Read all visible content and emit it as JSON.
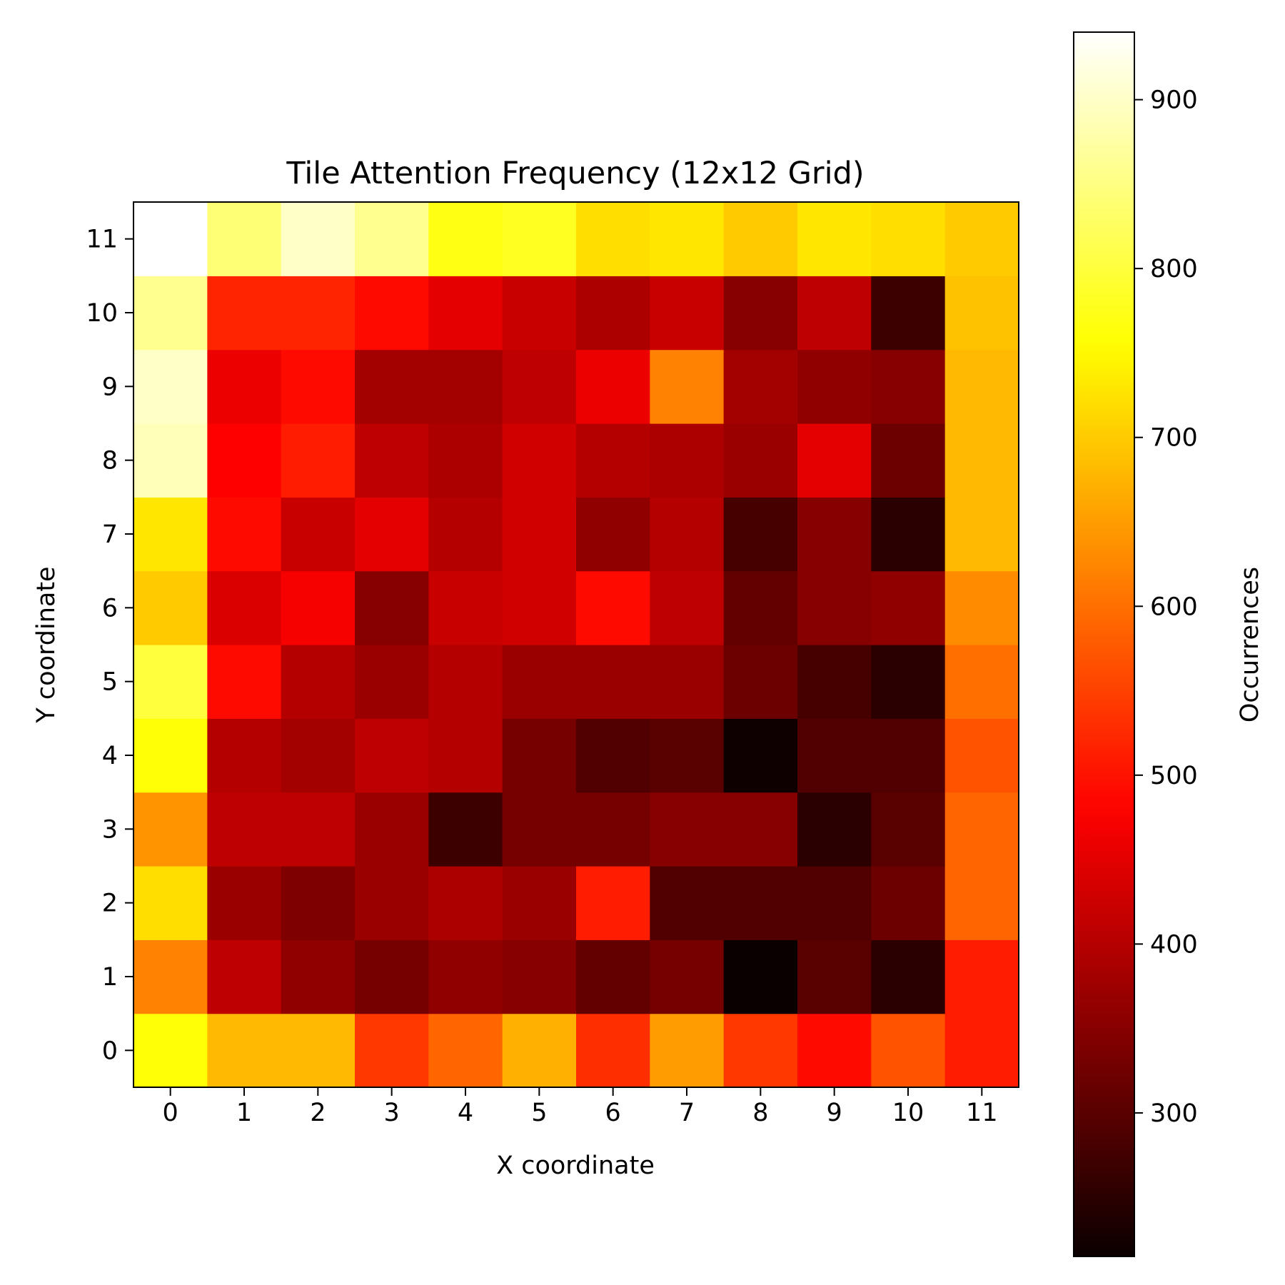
{
  "chart_data": {
    "type": "heatmap",
    "title": "Tile Attention Frequency (12x12 Grid)",
    "xlabel": "X coordinate",
    "ylabel": "Y coordinate",
    "x": [
      0,
      1,
      2,
      3,
      4,
      5,
      6,
      7,
      8,
      9,
      10,
      11
    ],
    "y": [
      0,
      1,
      2,
      3,
      4,
      5,
      6,
      7,
      8,
      9,
      10,
      11
    ],
    "colormap": "hot",
    "vmin": 215,
    "vmax": 940,
    "colorbar": {
      "label": "Occurrences",
      "ticks": [
        300,
        400,
        500,
        600,
        700,
        800,
        900
      ]
    },
    "values": [
      [
        760,
        680,
        680,
        540,
        590,
        670,
        530,
        650,
        540,
        490,
        570,
        510
      ],
      [
        620,
        410,
        360,
        330,
        360,
        350,
        310,
        330,
        215,
        300,
        250,
        510
      ],
      [
        720,
        370,
        340,
        370,
        390,
        370,
        510,
        290,
        290,
        290,
        320,
        590
      ],
      [
        640,
        410,
        410,
        370,
        270,
        330,
        330,
        350,
        350,
        250,
        300,
        590
      ],
      [
        760,
        400,
        380,
        410,
        400,
        330,
        290,
        300,
        220,
        290,
        290,
        570
      ],
      [
        800,
        490,
        400,
        370,
        400,
        370,
        370,
        370,
        320,
        280,
        250,
        600
      ],
      [
        700,
        440,
        470,
        350,
        420,
        430,
        490,
        410,
        310,
        350,
        360,
        630
      ],
      [
        730,
        490,
        420,
        450,
        400,
        430,
        360,
        400,
        280,
        350,
        250,
        680
      ],
      [
        890,
        480,
        510,
        410,
        390,
        430,
        400,
        390,
        370,
        450,
        320,
        680
      ],
      [
        900,
        460,
        490,
        380,
        380,
        410,
        460,
        620,
        380,
        360,
        350,
        680
      ],
      [
        860,
        520,
        520,
        490,
        450,
        420,
        390,
        420,
        350,
        410,
        270,
        690
      ],
      [
        940,
        840,
        900,
        860,
        770,
        780,
        720,
        730,
        700,
        730,
        720,
        700
      ]
    ]
  }
}
